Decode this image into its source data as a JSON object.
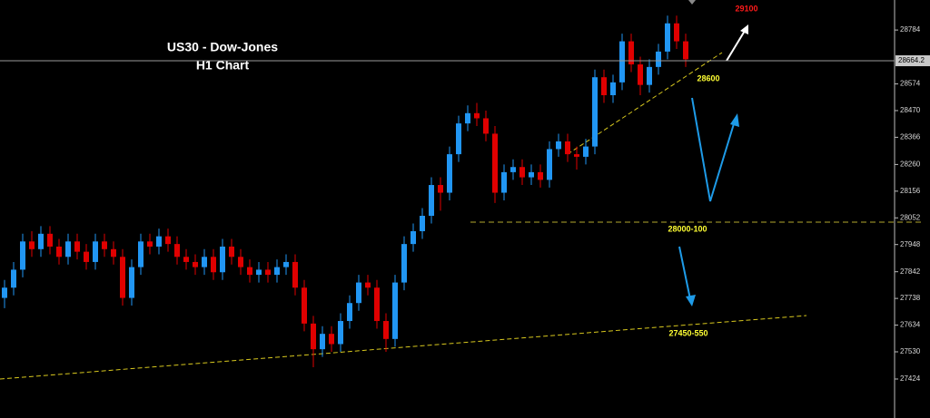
{
  "chart_data": {
    "type": "candlestick",
    "title": "US30 - Dow-Jones",
    "subtitle": "H1 Chart",
    "ylim": [
      27272,
      28901
    ],
    "yticks": [
      28784,
      28574,
      28470,
      28366,
      28260,
      28156,
      28052,
      27948,
      27842,
      27738,
      27634,
      27530,
      27424
    ],
    "last_price": 28664.2,
    "up_color": "#2196f3",
    "down_color": "#e00000",
    "annotations": [
      "29100",
      "28600",
      "28000-100",
      "27450-550"
    ],
    "series": [
      {
        "open": [
          27740,
          27780,
          27850,
          27960,
          27930,
          27990,
          27940,
          27900,
          27960,
          27920,
          27880,
          27960,
          27930,
          27900,
          27740,
          27860,
          27960,
          27940,
          27980,
          27950,
          27900,
          27880,
          27860,
          27900,
          27840,
          27940,
          27900,
          27860,
          27830,
          27850,
          27830,
          27860,
          27880,
          27780,
          27640,
          27540,
          27600,
          27560,
          27650,
          27720,
          27800,
          27780,
          27650,
          27580,
          27800,
          27950,
          28000,
          28060,
          28180,
          28150,
          28300,
          28420,
          28460,
          28440,
          28380,
          28150,
          28230,
          28250,
          28210,
          28230,
          28200,
          28320,
          28350,
          28300,
          28290,
          28330,
          28600,
          28530,
          28580,
          28740,
          28650,
          28570,
          28640,
          28700,
          28810,
          28740
        ],
        "high": [
          27810,
          27880,
          27990,
          28000,
          28020,
          28020,
          27970,
          27990,
          27990,
          27950,
          27990,
          27990,
          27960,
          27930,
          27890,
          27990,
          27990,
          28010,
          28010,
          27980,
          27930,
          27910,
          27930,
          27930,
          27970,
          27970,
          27930,
          27890,
          27880,
          27880,
          27890,
          27910,
          27910,
          27810,
          27670,
          27630,
          27630,
          27680,
          27750,
          27830,
          27830,
          27810,
          27680,
          27830,
          27980,
          28030,
          28090,
          28210,
          28210,
          28330,
          28450,
          28490,
          28500,
          28470,
          28410,
          28260,
          28280,
          28280,
          28260,
          28260,
          28350,
          28380,
          28380,
          28330,
          28360,
          28630,
          28630,
          28610,
          28770,
          28770,
          28680,
          28670,
          28730,
          28840,
          28840,
          28770
        ],
        "low": [
          27700,
          27750,
          27820,
          27900,
          27900,
          27910,
          27870,
          27870,
          27890,
          27850,
          27850,
          27900,
          27870,
          27710,
          27710,
          27830,
          27910,
          27910,
          27920,
          27870,
          27850,
          27830,
          27830,
          27810,
          27810,
          27870,
          27830,
          27800,
          27800,
          27800,
          27800,
          27830,
          27750,
          27610,
          27470,
          27510,
          27530,
          27530,
          27620,
          27690,
          27750,
          27620,
          27530,
          27550,
          27770,
          27920,
          27970,
          28030,
          28080,
          28120,
          28270,
          28390,
          28410,
          28350,
          28110,
          28120,
          28200,
          28180,
          28180,
          28170,
          28170,
          28290,
          28270,
          28240,
          28260,
          28300,
          28500,
          28500,
          28550,
          28620,
          28530,
          28540,
          28610,
          28670,
          28710,
          28640
        ],
        "close": [
          27780,
          27850,
          27960,
          27930,
          27990,
          27940,
          27900,
          27960,
          27920,
          27880,
          27960,
          27930,
          27900,
          27740,
          27860,
          27960,
          27940,
          27980,
          27950,
          27900,
          27880,
          27860,
          27900,
          27840,
          27940,
          27900,
          27860,
          27830,
          27850,
          27830,
          27860,
          27880,
          27780,
          27640,
          27540,
          27600,
          27560,
          27650,
          27720,
          27800,
          27780,
          27650,
          27580,
          27800,
          27950,
          28000,
          28060,
          28180,
          28150,
          28300,
          28420,
          28460,
          28440,
          28380,
          28150,
          28230,
          28250,
          28210,
          28230,
          28200,
          28320,
          28350,
          28300,
          28290,
          28330,
          28600,
          28530,
          28580,
          28740,
          28650,
          28570,
          28640,
          28700,
          28810,
          28740,
          28670
        ]
      }
    ]
  }
}
